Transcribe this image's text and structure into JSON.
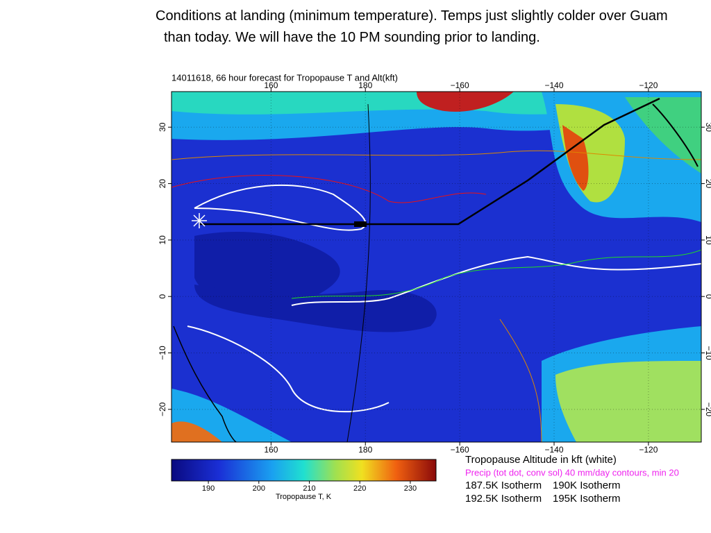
{
  "slide": {
    "text": "Conditions at landing (minimum temperature).  Temps just slightly colder over Guam than today.  We will have the 10 PM sounding prior to landing."
  },
  "map": {
    "title": "14011618, 66 hour forecast for Tropopause T and Alt(kft)",
    "lonlim": [
      138.9,
      -108.8
    ],
    "latlim": [
      -25.8,
      36.3
    ],
    "lon_ticks": [
      160,
      180,
      {
        "value": -160,
        "label": "−160"
      },
      {
        "value": -140,
        "label": "−140"
      },
      {
        "value": -120,
        "label": "−120"
      }
    ],
    "lat_ticks": [
      30,
      20,
      10,
      0,
      {
        "value": -10,
        "label": "−10"
      },
      {
        "value": -20,
        "label": "−20"
      }
    ]
  },
  "colorbar": {
    "range": [
      182.7,
      235.1
    ],
    "ticks": [
      190,
      200,
      210,
      220,
      230
    ],
    "label": "Tropopause T, K"
  },
  "legend": {
    "altitude": "Tropopause Altitude in kft (white)",
    "precip": "Precip (tot dot, conv sol) 40 mm/day contours, min 20",
    "isotherms": [
      {
        "label": "187.5K Isotherm",
        "color": "#22dd22"
      },
      {
        "label": "190K Isotherm",
        "color": "#ee1111"
      },
      {
        "label": "192.5K Isotherm",
        "color": "#dd8800"
      },
      {
        "label": "195K Isotherm",
        "color": "#eeee11"
      }
    ]
  }
}
